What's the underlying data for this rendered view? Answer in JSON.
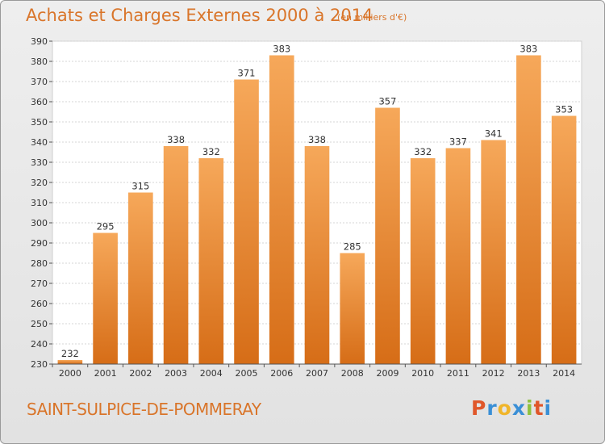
{
  "header": {
    "title": "Achats et Charges Externes 2000 à 2014",
    "subtitle": "(en milliers d'€)"
  },
  "footer": {
    "commune": "SAINT-SULPICE-DE-POMMERAY",
    "logo_text": "Proxiti"
  },
  "colors": {
    "bar_top": "#f6a85a",
    "bar_bottom": "#d66d17",
    "accent": "#d9752a"
  },
  "chart_data": {
    "type": "bar",
    "title": "Achats et Charges Externes 2000 à 2014",
    "subtitle": "(en milliers d'€)",
    "categories": [
      "2000",
      "2001",
      "2002",
      "2003",
      "2004",
      "2005",
      "2006",
      "2007",
      "2008",
      "2009",
      "2010",
      "2011",
      "2012",
      "2013",
      "2014"
    ],
    "values": [
      232,
      295,
      315,
      338,
      332,
      371,
      383,
      338,
      285,
      357,
      332,
      337,
      341,
      383,
      353
    ],
    "ylim": [
      230,
      390
    ],
    "yticks": [
      230,
      240,
      250,
      260,
      270,
      280,
      290,
      300,
      310,
      320,
      330,
      340,
      350,
      360,
      370,
      380,
      390
    ],
    "grid": true,
    "xlabel": "",
    "ylabel": ""
  }
}
